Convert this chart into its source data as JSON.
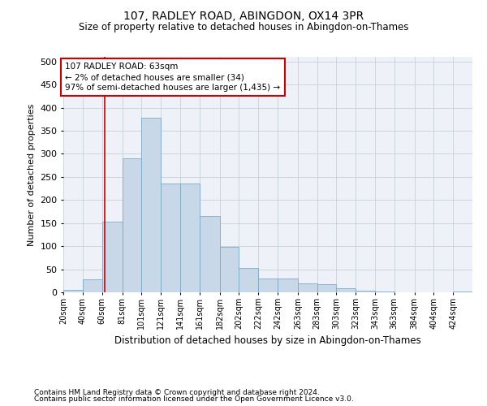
{
  "title1": "107, RADLEY ROAD, ABINGDON, OX14 3PR",
  "title2": "Size of property relative to detached houses in Abingdon-on-Thames",
  "xlabel": "Distribution of detached houses by size in Abingdon-on-Thames",
  "ylabel": "Number of detached properties",
  "footer1": "Contains HM Land Registry data © Crown copyright and database right 2024.",
  "footer2": "Contains public sector information licensed under the Open Government Licence v3.0.",
  "bar_color": "#c8d8e8",
  "bar_edge_color": "#7aaac8",
  "grid_color": "#c8d0da",
  "bg_color": "#eef2f8",
  "annotation_box_color": "#cc0000",
  "vline_color": "#cc0000",
  "bin_labels": [
    "20sqm",
    "40sqm",
    "60sqm",
    "81sqm",
    "101sqm",
    "121sqm",
    "141sqm",
    "161sqm",
    "182sqm",
    "202sqm",
    "222sqm",
    "242sqm",
    "263sqm",
    "283sqm",
    "303sqm",
    "323sqm",
    "343sqm",
    "363sqm",
    "384sqm",
    "404sqm",
    "424sqm"
  ],
  "bin_edges": [
    20,
    40,
    60,
    81,
    101,
    121,
    141,
    161,
    182,
    202,
    222,
    242,
    263,
    283,
    303,
    323,
    343,
    363,
    384,
    404,
    424,
    444
  ],
  "bar_heights": [
    5,
    28,
    153,
    290,
    378,
    235,
    235,
    165,
    98,
    52,
    30,
    30,
    20,
    17,
    8,
    3,
    1,
    0,
    0,
    0,
    2
  ],
  "vline_x": 63,
  "ylim": [
    0,
    510
  ],
  "yticks": [
    0,
    50,
    100,
    150,
    200,
    250,
    300,
    350,
    400,
    450,
    500
  ],
  "annotation_text": "107 RADLEY ROAD: 63sqm\n← 2% of detached houses are smaller (34)\n97% of semi-detached houses are larger (1,435) →",
  "footer_fontsize": 6.5,
  "title1_fontsize": 10,
  "title2_fontsize": 8.5
}
